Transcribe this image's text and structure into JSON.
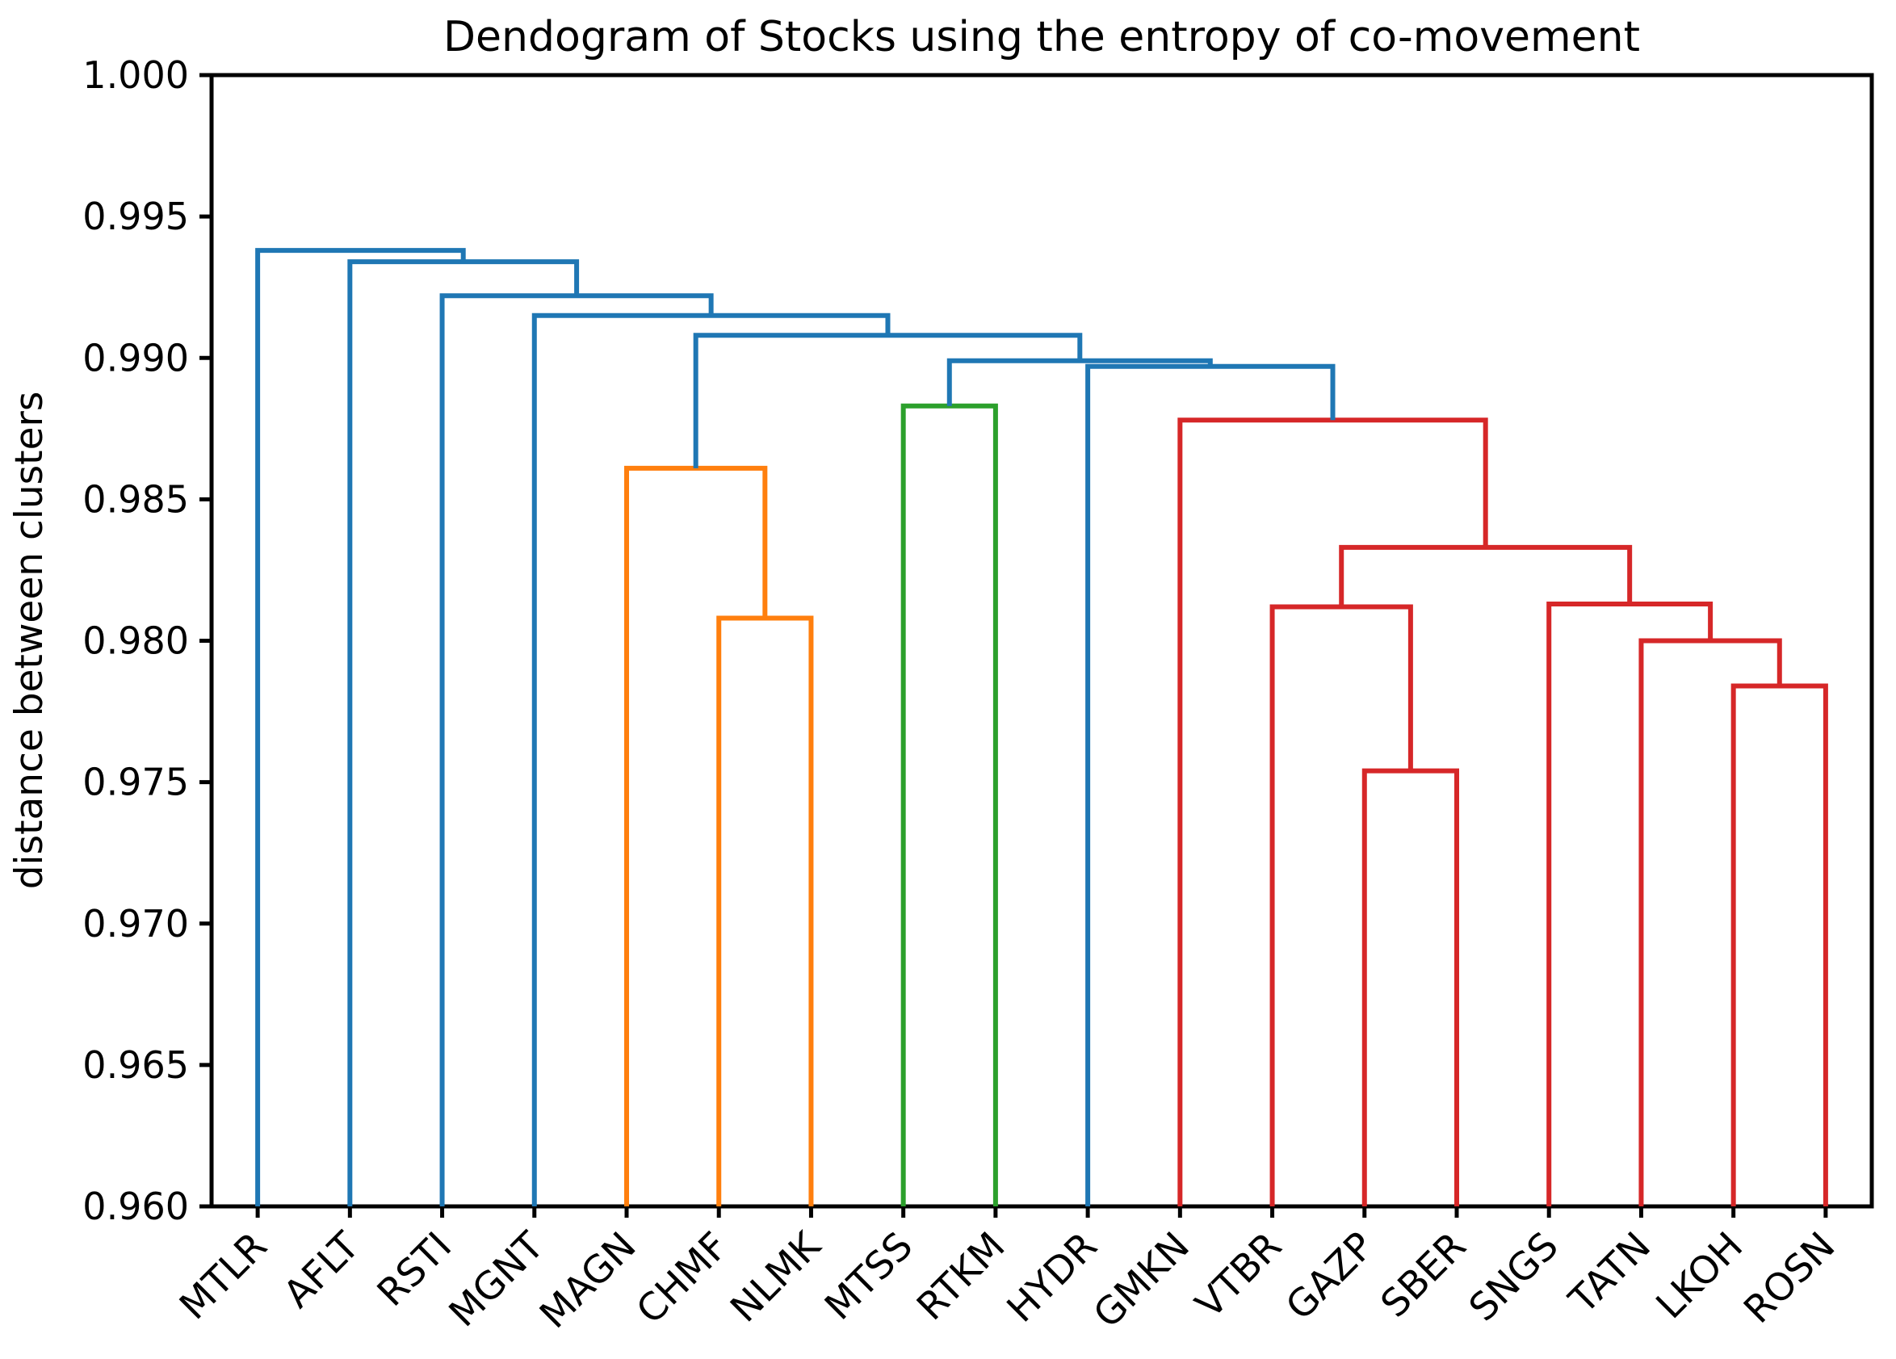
{
  "chart_data": {
    "type": "dendrogram",
    "title": "Dendogram of Stocks using the entropy of co-movement",
    "ylabel": "distance between clusters",
    "xlabel": "",
    "leaves": [
      "MTLR",
      "AFLT",
      "RSTI",
      "MGNT",
      "MAGN",
      "CHMF",
      "NLMK",
      "MTSS",
      "RTKM",
      "HYDR",
      "GMKN",
      "VTBR",
      "GAZP",
      "SBER",
      "SNGS",
      "TATN",
      "LKOH",
      "ROSN"
    ],
    "ylim": [
      0.96,
      1.0
    ],
    "ytick_labels": [
      "1.000",
      "0.995",
      "0.990",
      "0.985",
      "0.980",
      "0.975",
      "0.970",
      "0.965",
      "0.960"
    ],
    "yticks": [
      1.0,
      0.995,
      0.99,
      0.985,
      0.98,
      0.975,
      0.97,
      0.965,
      0.96
    ],
    "grid": false,
    "legend": null,
    "colors": {
      "blue": "#1f77b4",
      "orange": "#ff7f0e",
      "green": "#2ca02c",
      "red": "#d62728",
      "axis": "#000000",
      "background": "#ffffff"
    },
    "links": [
      {
        "x1": 12.5,
        "h1": 0.96,
        "x2": 13.5,
        "h2": 0.96,
        "h": 0.9754,
        "color": "red"
      },
      {
        "x1": 16.5,
        "h1": 0.96,
        "x2": 17.5,
        "h2": 0.96,
        "h": 0.9784,
        "color": "red"
      },
      {
        "x1": 15.5,
        "h1": 0.96,
        "x2": 17.0,
        "h2": 0.9784,
        "h": 0.98,
        "color": "red"
      },
      {
        "x1": 5.5,
        "h1": 0.96,
        "x2": 6.5,
        "h2": 0.96,
        "h": 0.9808,
        "color": "orange"
      },
      {
        "x1": 11.5,
        "h1": 0.96,
        "x2": 13.0,
        "h2": 0.9754,
        "h": 0.9812,
        "color": "red"
      },
      {
        "x1": 14.5,
        "h1": 0.96,
        "x2": 16.25,
        "h2": 0.98,
        "h": 0.9813,
        "color": "red"
      },
      {
        "x1": 12.25,
        "h1": 0.9812,
        "x2": 15.375,
        "h2": 0.9813,
        "h": 0.9833,
        "color": "red"
      },
      {
        "x1": 4.5,
        "h1": 0.96,
        "x2": 6.0,
        "h2": 0.9808,
        "h": 0.9861,
        "color": "orange"
      },
      {
        "x1": 10.5,
        "h1": 0.96,
        "x2": 13.8125,
        "h2": 0.9833,
        "h": 0.9878,
        "color": "red"
      },
      {
        "x1": 7.5,
        "h1": 0.96,
        "x2": 8.5,
        "h2": 0.96,
        "h": 0.9883,
        "color": "green"
      },
      {
        "x1": 9.5,
        "h1": 0.96,
        "x2": 12.15625,
        "h2": 0.9878,
        "h": 0.9897,
        "color": "blue"
      },
      {
        "x1": 8.0,
        "h1": 0.9883,
        "x2": 10.828125,
        "h2": 0.9897,
        "h": 0.9899,
        "color": "blue"
      },
      {
        "x1": 5.25,
        "h1": 0.9861,
        "x2": 9.4140625,
        "h2": 0.9899,
        "h": 0.9908,
        "color": "blue"
      },
      {
        "x1": 3.5,
        "h1": 0.96,
        "x2": 7.33203125,
        "h2": 0.9908,
        "h": 0.9915,
        "color": "blue"
      },
      {
        "x1": 2.5,
        "h1": 0.96,
        "x2": 5.416015625,
        "h2": 0.9915,
        "h": 0.9922,
        "color": "blue"
      },
      {
        "x1": 1.5,
        "h1": 0.96,
        "x2": 3.9580078125,
        "h2": 0.9922,
        "h": 0.9934,
        "color": "blue"
      },
      {
        "x1": 0.5,
        "h1": 0.96,
        "x2": 2.72900390625,
        "h2": 0.9934,
        "h": 0.9938,
        "color": "blue"
      }
    ],
    "merges": [
      {
        "clusters": "GAZP + SBER",
        "height": 0.9754
      },
      {
        "clusters": "LKOH + ROSN",
        "height": 0.9784
      },
      {
        "clusters": "TATN + (LKOH,ROSN)",
        "height": 0.98
      },
      {
        "clusters": "CHMF + NLMK",
        "height": 0.9808
      },
      {
        "clusters": "VTBR + (GAZP,SBER)",
        "height": 0.9812
      },
      {
        "clusters": "SNGS + (TATN,LKOH,ROSN)",
        "height": 0.9813
      },
      {
        "clusters": "(VTBR,GAZP,SBER) + (SNGS,TATN,LKOH,ROSN)",
        "height": 0.9833
      },
      {
        "clusters": "MAGN + (CHMF,NLMK)",
        "height": 0.9861
      },
      {
        "clusters": "GMKN + rest-of-red",
        "height": 0.9878
      },
      {
        "clusters": "MTSS + RTKM",
        "height": 0.9883
      },
      {
        "clusters": "HYDR + red-cluster",
        "height": 0.9897
      },
      {
        "clusters": "(MTSS,RTKM) + (HYDR,red-cluster)",
        "height": 0.9899
      },
      {
        "clusters": "orange-cluster + lower-tree",
        "height": 0.9908
      },
      {
        "clusters": "MGNT + lower-tree",
        "height": 0.9915
      },
      {
        "clusters": "RSTI + lower-tree",
        "height": 0.9922
      },
      {
        "clusters": "AFLT + lower-tree",
        "height": 0.9934
      },
      {
        "clusters": "MTLR + lower-tree",
        "height": 0.9938
      }
    ]
  }
}
